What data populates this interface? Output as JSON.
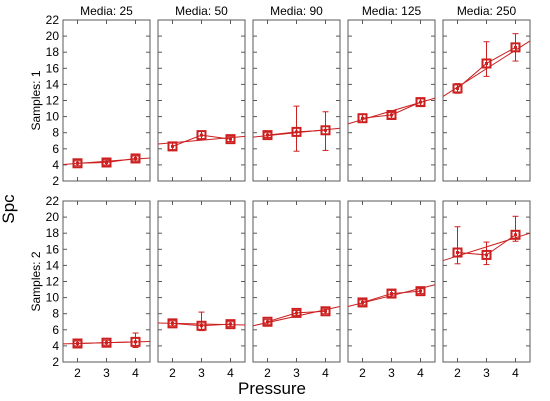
{
  "chart_data": {
    "type": "scatter",
    "ylabel": "Spc",
    "xlabel": "Pressure",
    "x_ticks": [
      2,
      3,
      4
    ],
    "y_ticks": [
      2,
      4,
      6,
      8,
      10,
      12,
      14,
      16,
      18,
      20,
      22
    ],
    "xlim": [
      1.5,
      4.5
    ],
    "ylim": [
      2,
      22
    ],
    "grid": false,
    "colors": {
      "series": "#cc1f1f",
      "frame": "#5a5a5a"
    },
    "columns": [
      "Media: 25",
      "Media: 50",
      "Media: 90",
      "Media: 125",
      "Media: 250"
    ],
    "rows": [
      "Samples: 1",
      "Samples: 2"
    ],
    "panels": [
      {
        "row": 0,
        "col": 0,
        "points": [
          {
            "x": 2,
            "y": 4.2,
            "lo": 3.9,
            "hi": 4.5
          },
          {
            "x": 3,
            "y": 4.3,
            "lo": 4.0,
            "hi": 4.6
          },
          {
            "x": 4,
            "y": 4.8,
            "lo": 4.5,
            "hi": 5.1
          }
        ],
        "fit": [
          4.05,
          4.85
        ]
      },
      {
        "row": 0,
        "col": 1,
        "points": [
          {
            "x": 2,
            "y": 6.3,
            "lo": 5.9,
            "hi": 6.7
          },
          {
            "x": 3,
            "y": 7.7,
            "lo": 7.2,
            "hi": 8.2
          },
          {
            "x": 4,
            "y": 7.2,
            "lo": 6.9,
            "hi": 7.5
          }
        ],
        "fit": [
          6.6,
          7.55
        ]
      },
      {
        "row": 0,
        "col": 2,
        "points": [
          {
            "x": 2,
            "y": 7.7,
            "lo": 7.4,
            "hi": 8.0
          },
          {
            "x": 3,
            "y": 8.1,
            "lo": 5.7,
            "hi": 11.3
          },
          {
            "x": 4,
            "y": 8.3,
            "lo": 5.8,
            "hi": 10.6
          }
        ],
        "fit": [
          7.45,
          8.55
        ]
      },
      {
        "row": 0,
        "col": 3,
        "points": [
          {
            "x": 2,
            "y": 9.8,
            "lo": 9.3,
            "hi": 10.3
          },
          {
            "x": 3,
            "y": 10.2,
            "lo": 9.8,
            "hi": 10.5
          },
          {
            "x": 4,
            "y": 11.8,
            "lo": 11.4,
            "hi": 12.2
          }
        ],
        "fit": [
          9.1,
          12.3
        ]
      },
      {
        "row": 0,
        "col": 4,
        "points": [
          {
            "x": 2,
            "y": 13.5,
            "lo": 12.9,
            "hi": 14.1
          },
          {
            "x": 3,
            "y": 16.6,
            "lo": 15.0,
            "hi": 19.3
          },
          {
            "x": 4,
            "y": 18.6,
            "lo": 16.9,
            "hi": 20.3
          }
        ],
        "fit": [
          12.5,
          19.4
        ]
      },
      {
        "row": 1,
        "col": 0,
        "points": [
          {
            "x": 2,
            "y": 4.3,
            "lo": 4.0,
            "hi": 4.6
          },
          {
            "x": 3,
            "y": 4.4,
            "lo": 4.1,
            "hi": 4.7
          },
          {
            "x": 4,
            "y": 4.5,
            "lo": 3.8,
            "hi": 5.6
          }
        ],
        "fit": [
          4.25,
          4.55
        ]
      },
      {
        "row": 1,
        "col": 1,
        "points": [
          {
            "x": 2,
            "y": 6.8,
            "lo": 6.5,
            "hi": 7.1
          },
          {
            "x": 3,
            "y": 6.5,
            "lo": 5.9,
            "hi": 8.2
          },
          {
            "x": 4,
            "y": 6.7,
            "lo": 6.4,
            "hi": 7.0
          }
        ],
        "fit": [
          6.85,
          6.6
        ]
      },
      {
        "row": 1,
        "col": 2,
        "points": [
          {
            "x": 2,
            "y": 7.0,
            "lo": 6.7,
            "hi": 7.3
          },
          {
            "x": 3,
            "y": 8.1,
            "lo": 7.8,
            "hi": 8.4
          },
          {
            "x": 4,
            "y": 8.3,
            "lo": 8.0,
            "hi": 8.6
          }
        ],
        "fit": [
          6.5,
          8.9
        ]
      },
      {
        "row": 1,
        "col": 3,
        "points": [
          {
            "x": 2,
            "y": 9.4,
            "lo": 9.1,
            "hi": 9.7
          },
          {
            "x": 3,
            "y": 10.5,
            "lo": 10.1,
            "hi": 10.9
          },
          {
            "x": 4,
            "y": 10.8,
            "lo": 10.5,
            "hi": 11.1
          }
        ],
        "fit": [
          8.9,
          11.6
        ]
      },
      {
        "row": 1,
        "col": 4,
        "points": [
          {
            "x": 2,
            "y": 15.6,
            "lo": 14.2,
            "hi": 18.8
          },
          {
            "x": 3,
            "y": 15.3,
            "lo": 14.1,
            "hi": 16.9
          },
          {
            "x": 4,
            "y": 17.8,
            "lo": 17.0,
            "hi": 20.1
          }
        ],
        "fit": [
          14.6,
          18.0
        ]
      }
    ]
  }
}
